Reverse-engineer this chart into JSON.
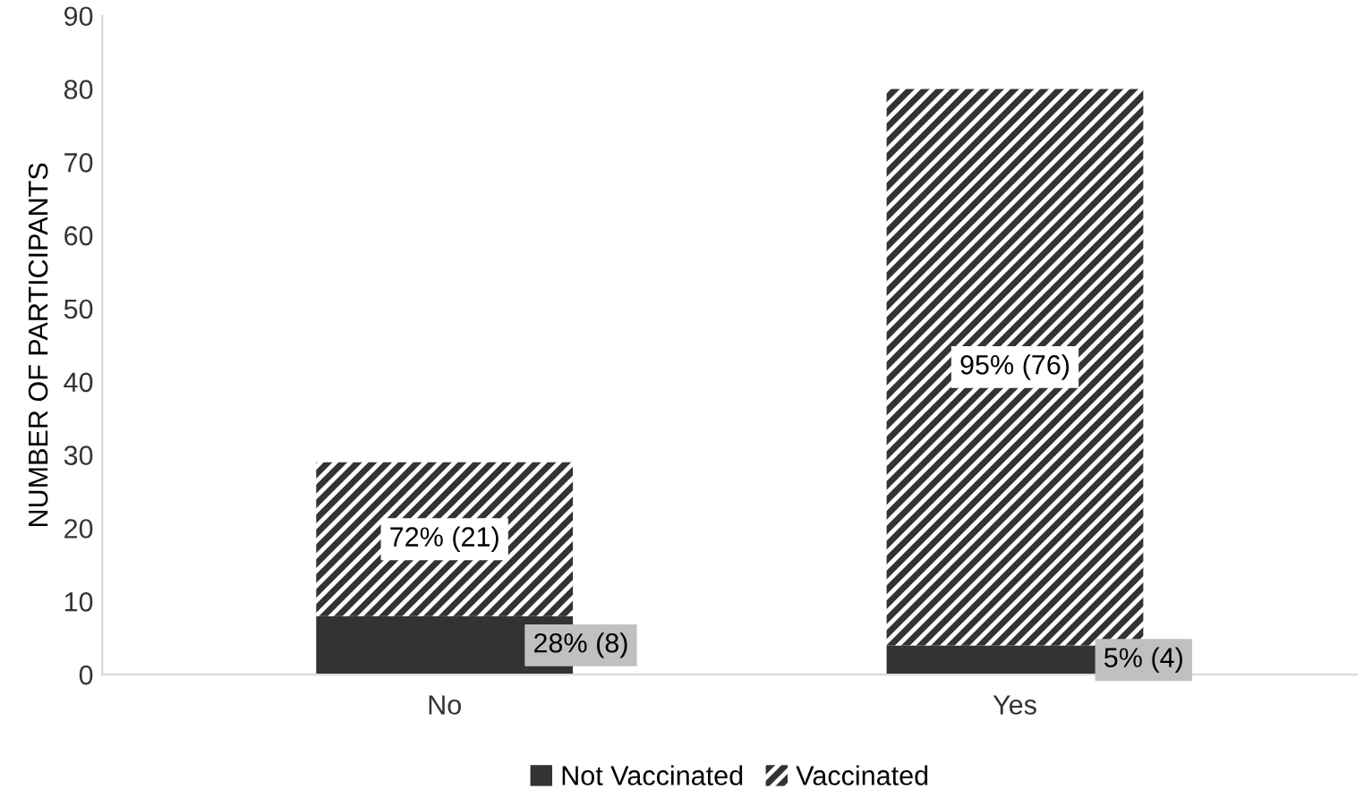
{
  "chart_data": {
    "type": "bar",
    "stacked": true,
    "ylabel": "NUMBER OF PARTICIPANTS",
    "categories": [
      "No",
      "Yes"
    ],
    "series": [
      {
        "name": "Not Vaccinated",
        "color": "#333333",
        "values": [
          8,
          4
        ],
        "value_labels": [
          "28% (8)",
          "5% (4)"
        ]
      },
      {
        "name": "Vaccinated",
        "color": "#333333",
        "values": [
          21,
          76
        ],
        "value_labels": [
          "72% (21)",
          "95% (76)"
        ]
      }
    ],
    "ylim": [
      0,
      90
    ],
    "yticks": [
      0,
      10,
      20,
      30,
      40,
      50,
      60,
      70,
      80,
      90
    ],
    "grid": false,
    "legend": "bottom"
  }
}
